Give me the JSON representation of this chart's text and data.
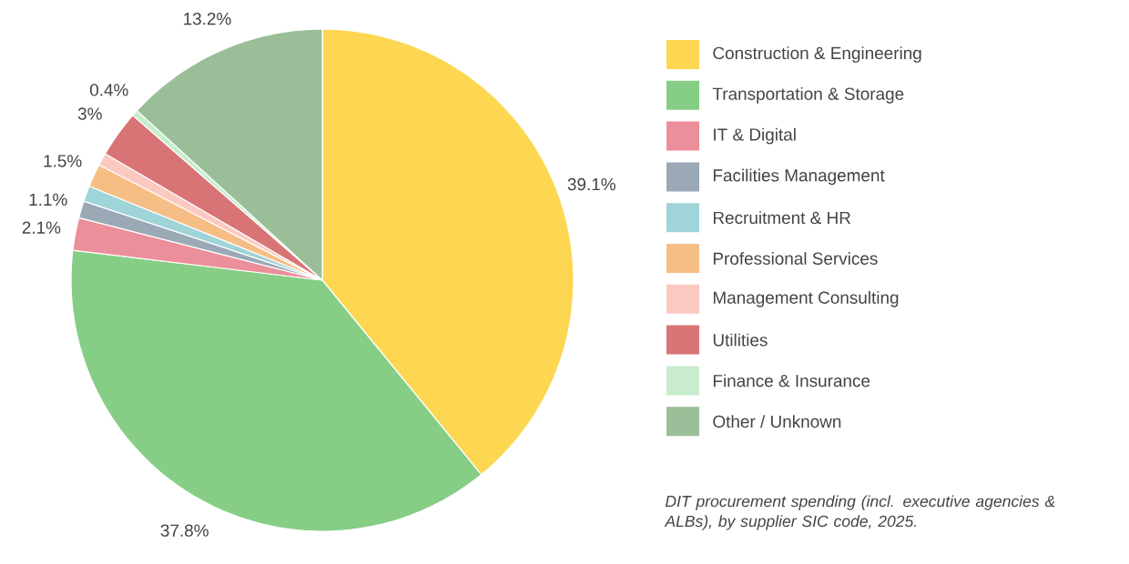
{
  "chart_data": {
    "type": "pie",
    "categories": [
      "Construction & Engineering",
      "Transportation & Storage",
      "IT & Digital",
      "Facilities Management",
      "Recruitment & HR",
      "Professional Services",
      "Management Consulting",
      "Utilities",
      "Finance & Insurance",
      "Other / Unknown"
    ],
    "values": [
      39.1,
      37.8,
      2.1,
      1.1,
      1.0,
      1.5,
      0.8,
      3,
      0.4,
      13.2
    ],
    "value_labels": [
      "39.1%",
      "37.8%",
      "2.1%",
      "1.1%",
      null,
      "1.5%",
      null,
      "3%",
      "0.4%",
      "13.2%"
    ],
    "colors": [
      "#fdd752",
      "#86cd86",
      "#eb8f9a",
      "#9aa9b5",
      "#9fd4d8",
      "#f6be85",
      "#fbc9c0",
      "#d87476",
      "#c8eccc",
      "#9abf98"
    ],
    "legend": "right",
    "annotations": [
      "DIT procurement spending (incl. executive agencies & ALBs), by supplier SIC code, 2025."
    ]
  }
}
